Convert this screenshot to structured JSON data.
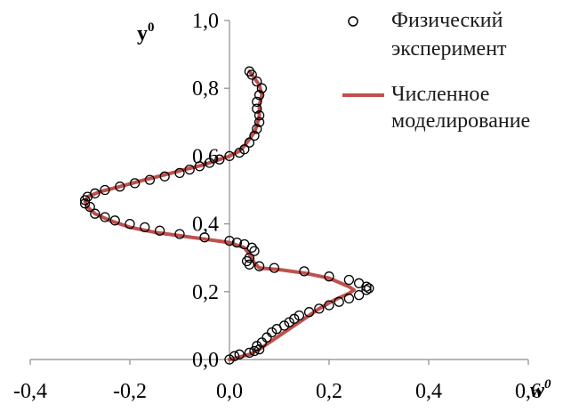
{
  "chart_data": {
    "type": "scatter",
    "xlabel": "w",
    "xlabel_sup": "0",
    "ylabel": "y",
    "ylabel_sup": "0",
    "xlim": [
      -0.4,
      0.6
    ],
    "ylim": [
      0.0,
      1.0
    ],
    "x_ticks": [
      -0.4,
      -0.2,
      0.0,
      0.2,
      0.4,
      0.6
    ],
    "x_tick_labels": [
      "-0,4",
      "-0,2",
      "0,0",
      "0,2",
      "0,4",
      "0,6"
    ],
    "y_ticks": [
      0.0,
      0.2,
      0.4,
      0.6,
      0.8,
      1.0
    ],
    "y_tick_labels": [
      "0,0",
      "0,2",
      "0,4",
      "0,6",
      "0,8",
      "1,0"
    ],
    "grid": false,
    "legend_position": "top-right",
    "legend_lines": [
      [
        "Физический",
        "эксперимент"
      ],
      [
        "Численное",
        "моделирование"
      ]
    ],
    "series": [
      {
        "name": "Физический эксперимент",
        "style": "markers",
        "marker": "open-circle",
        "color": "#000000",
        "points": [
          [
            0.0,
            0.0
          ],
          [
            0.01,
            0.01
          ],
          [
            0.02,
            0.015
          ],
          [
            0.04,
            0.02
          ],
          [
            0.05,
            0.025
          ],
          [
            0.06,
            0.03
          ],
          [
            0.055,
            0.04
          ],
          [
            0.065,
            0.05
          ],
          [
            0.075,
            0.065
          ],
          [
            0.085,
            0.08
          ],
          [
            0.095,
            0.09
          ],
          [
            0.11,
            0.1
          ],
          [
            0.12,
            0.11
          ],
          [
            0.13,
            0.12
          ],
          [
            0.14,
            0.13
          ],
          [
            0.16,
            0.14
          ],
          [
            0.18,
            0.15
          ],
          [
            0.2,
            0.16
          ],
          [
            0.22,
            0.17
          ],
          [
            0.24,
            0.18
          ],
          [
            0.26,
            0.19
          ],
          [
            0.275,
            0.205
          ],
          [
            0.28,
            0.21
          ],
          [
            0.275,
            0.215
          ],
          [
            0.26,
            0.225
          ],
          [
            0.24,
            0.235
          ],
          [
            0.2,
            0.245
          ],
          [
            0.15,
            0.26
          ],
          [
            0.09,
            0.27
          ],
          [
            0.06,
            0.275
          ],
          [
            0.04,
            0.28
          ],
          [
            0.035,
            0.29
          ],
          [
            0.04,
            0.3
          ],
          [
            0.05,
            0.32
          ],
          [
            0.045,
            0.33
          ],
          [
            0.03,
            0.34
          ],
          [
            0.015,
            0.345
          ],
          [
            0.0,
            0.35
          ],
          [
            -0.05,
            0.36
          ],
          [
            -0.1,
            0.37
          ],
          [
            -0.14,
            0.38
          ],
          [
            -0.17,
            0.39
          ],
          [
            -0.2,
            0.4
          ],
          [
            -0.23,
            0.41
          ],
          [
            -0.25,
            0.42
          ],
          [
            -0.27,
            0.43
          ],
          [
            -0.28,
            0.45
          ],
          [
            -0.29,
            0.46
          ],
          [
            -0.29,
            0.47
          ],
          [
            -0.285,
            0.48
          ],
          [
            -0.27,
            0.49
          ],
          [
            -0.25,
            0.5
          ],
          [
            -0.22,
            0.51
          ],
          [
            -0.19,
            0.52
          ],
          [
            -0.16,
            0.53
          ],
          [
            -0.13,
            0.54
          ],
          [
            -0.1,
            0.55
          ],
          [
            -0.08,
            0.56
          ],
          [
            -0.06,
            0.57
          ],
          [
            -0.04,
            0.58
          ],
          [
            -0.02,
            0.59
          ],
          [
            0.0,
            0.6
          ],
          [
            0.02,
            0.61
          ],
          [
            0.03,
            0.62
          ],
          [
            0.04,
            0.64
          ],
          [
            0.05,
            0.66
          ],
          [
            0.055,
            0.68
          ],
          [
            0.06,
            0.7
          ],
          [
            0.06,
            0.72
          ],
          [
            0.055,
            0.74
          ],
          [
            0.055,
            0.76
          ],
          [
            0.06,
            0.78
          ],
          [
            0.065,
            0.8
          ],
          [
            0.055,
            0.82
          ],
          [
            0.045,
            0.84
          ],
          [
            0.04,
            0.85
          ]
        ]
      },
      {
        "name": "Численное моделирование",
        "style": "line",
        "color": "#c0504d",
        "points": [
          [
            0.0,
            0.0
          ],
          [
            0.015,
            0.005
          ],
          [
            0.04,
            0.015
          ],
          [
            0.06,
            0.03
          ],
          [
            0.08,
            0.05
          ],
          [
            0.1,
            0.07
          ],
          [
            0.12,
            0.09
          ],
          [
            0.15,
            0.12
          ],
          [
            0.18,
            0.15
          ],
          [
            0.21,
            0.175
          ],
          [
            0.24,
            0.195
          ],
          [
            0.25,
            0.205
          ],
          [
            0.24,
            0.215
          ],
          [
            0.2,
            0.24
          ],
          [
            0.15,
            0.255
          ],
          [
            0.1,
            0.265
          ],
          [
            0.06,
            0.27
          ],
          [
            0.05,
            0.285
          ],
          [
            0.04,
            0.31
          ],
          [
            0.03,
            0.33
          ],
          [
            0.0,
            0.345
          ],
          [
            -0.05,
            0.355
          ],
          [
            -0.1,
            0.365
          ],
          [
            -0.15,
            0.375
          ],
          [
            -0.2,
            0.39
          ],
          [
            -0.24,
            0.41
          ],
          [
            -0.27,
            0.43
          ],
          [
            -0.285,
            0.45
          ],
          [
            -0.29,
            0.465
          ],
          [
            -0.285,
            0.48
          ],
          [
            -0.26,
            0.495
          ],
          [
            -0.22,
            0.51
          ],
          [
            -0.17,
            0.53
          ],
          [
            -0.13,
            0.545
          ],
          [
            -0.09,
            0.56
          ],
          [
            -0.05,
            0.575
          ],
          [
            -0.02,
            0.59
          ],
          [
            0.0,
            0.6
          ],
          [
            0.02,
            0.615
          ],
          [
            0.03,
            0.63
          ],
          [
            0.04,
            0.65
          ],
          [
            0.05,
            0.67
          ],
          [
            0.055,
            0.69
          ],
          [
            0.06,
            0.72
          ],
          [
            0.06,
            0.75
          ],
          [
            0.065,
            0.78
          ],
          [
            0.06,
            0.81
          ],
          [
            0.05,
            0.83
          ],
          [
            0.04,
            0.85
          ]
        ]
      }
    ]
  }
}
